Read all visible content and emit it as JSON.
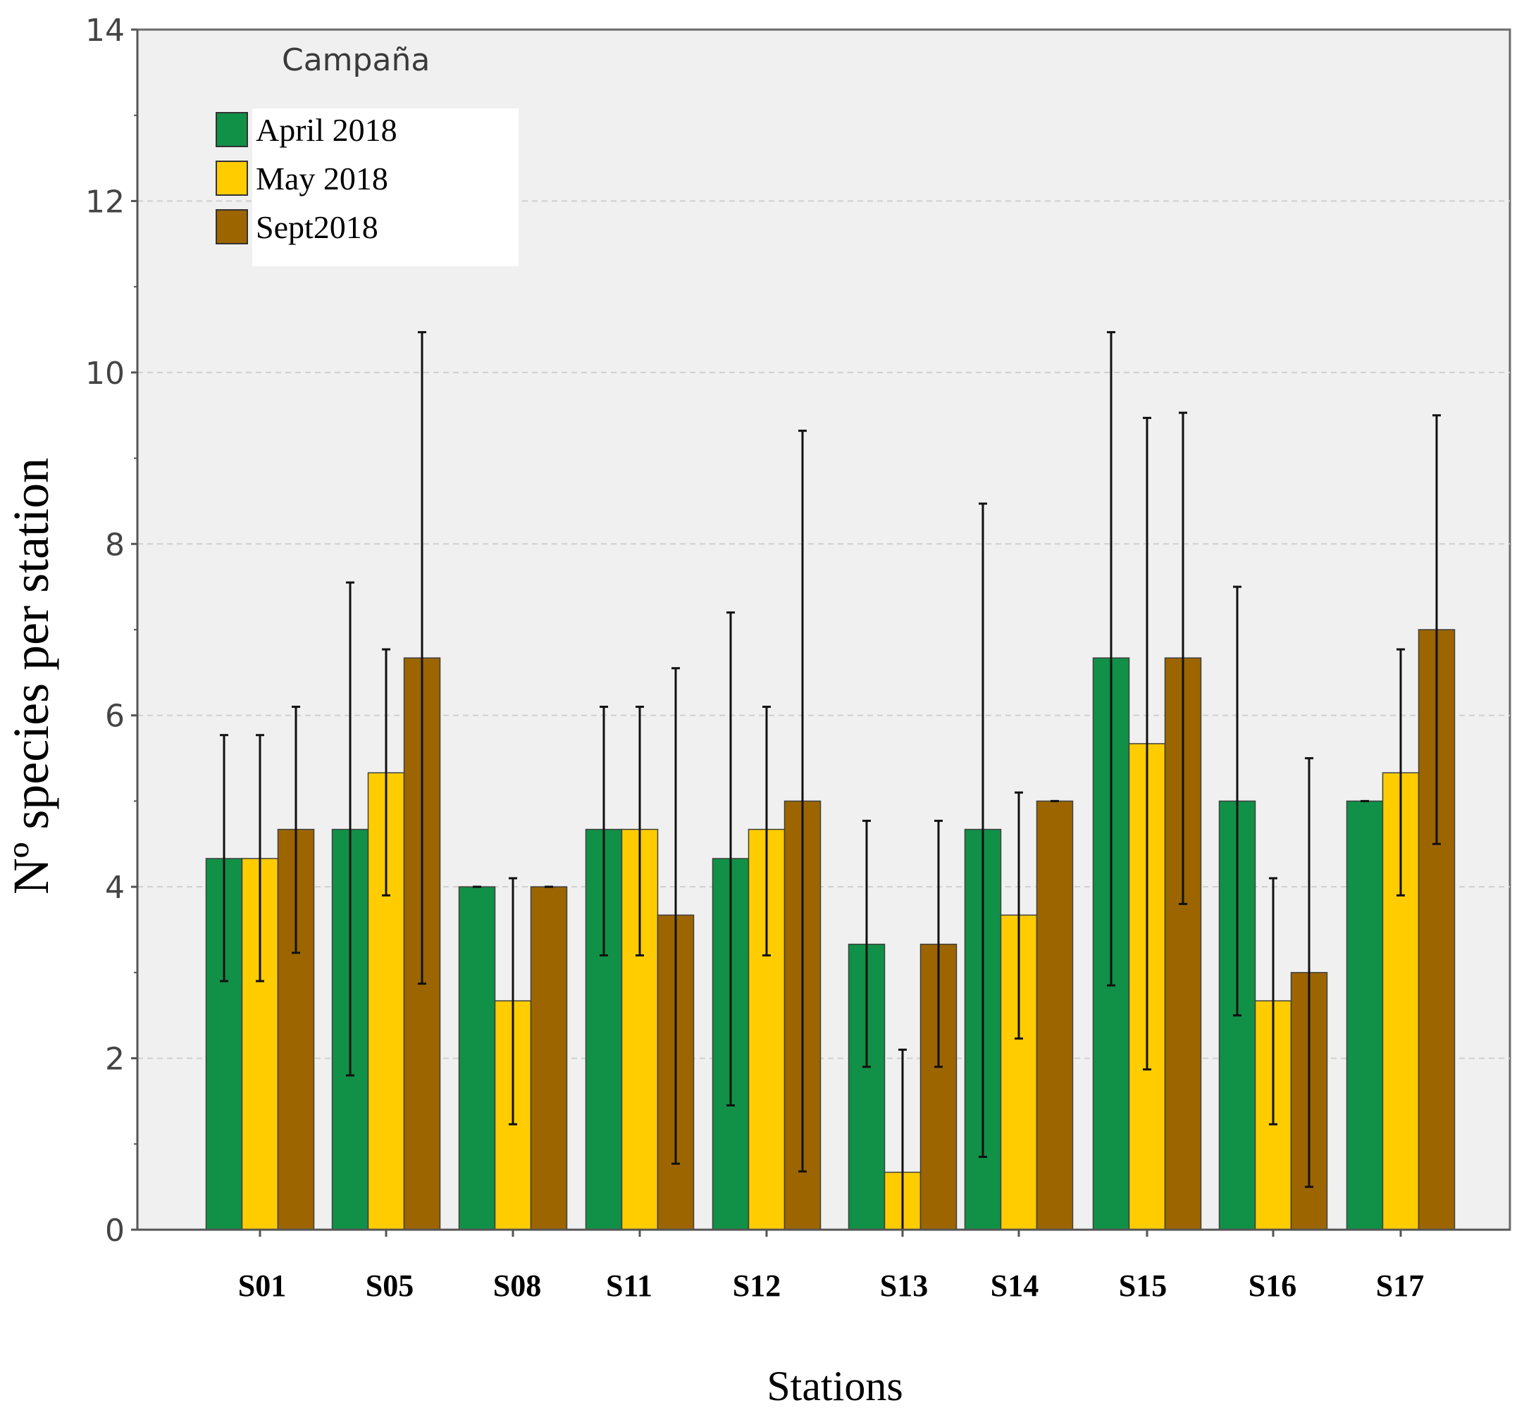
{
  "chart_data": {
    "type": "bar",
    "title": "",
    "xlabel": "Stations",
    "ylabel": "Nº species per station",
    "ylim": [
      0,
      14
    ],
    "yticks": [
      0,
      2,
      4,
      6,
      8,
      10,
      12,
      14
    ],
    "grid": true,
    "legend": {
      "title": "Campaña",
      "placement": "top-left"
    },
    "categories": [
      "S01",
      "S05",
      "S08",
      "S11",
      "S12",
      "S13",
      "S14",
      "S15",
      "S16",
      "S17"
    ],
    "series": [
      {
        "name": "April 2018",
        "color": "#119047",
        "values": [
          4.33,
          4.67,
          4.0,
          4.67,
          4.33,
          3.33,
          4.67,
          6.67,
          5.0,
          5.0
        ],
        "err_low": [
          2.9,
          1.8,
          4.0,
          3.2,
          1.45,
          1.9,
          0.85,
          2.85,
          2.5,
          5.0
        ],
        "err_high": [
          5.77,
          7.55,
          4.0,
          6.1,
          7.2,
          4.77,
          8.47,
          10.47,
          7.5,
          5.0
        ]
      },
      {
        "name": "May 2018",
        "color": "#FFCC00",
        "values": [
          4.33,
          5.33,
          2.67,
          4.67,
          4.67,
          0.67,
          3.67,
          5.67,
          2.67,
          5.33
        ],
        "err_low": [
          2.9,
          3.9,
          1.23,
          3.2,
          3.2,
          0.0,
          2.23,
          1.87,
          1.23,
          3.9
        ],
        "err_high": [
          5.77,
          6.77,
          4.1,
          6.1,
          6.1,
          2.1,
          5.1,
          9.47,
          4.1,
          6.77
        ]
      },
      {
        "name": "Sept2018",
        "color": "#9C6500",
        "values": [
          4.67,
          6.67,
          4.0,
          3.67,
          5.0,
          3.33,
          5.0,
          6.67,
          3.0,
          7.0
        ],
        "err_low": [
          3.23,
          2.87,
          4.0,
          0.77,
          0.68,
          1.9,
          5.0,
          3.8,
          0.5,
          4.5
        ],
        "err_high": [
          6.1,
          10.47,
          4.0,
          6.55,
          9.32,
          4.77,
          5.0,
          9.53,
          5.5,
          9.5
        ]
      }
    ]
  }
}
